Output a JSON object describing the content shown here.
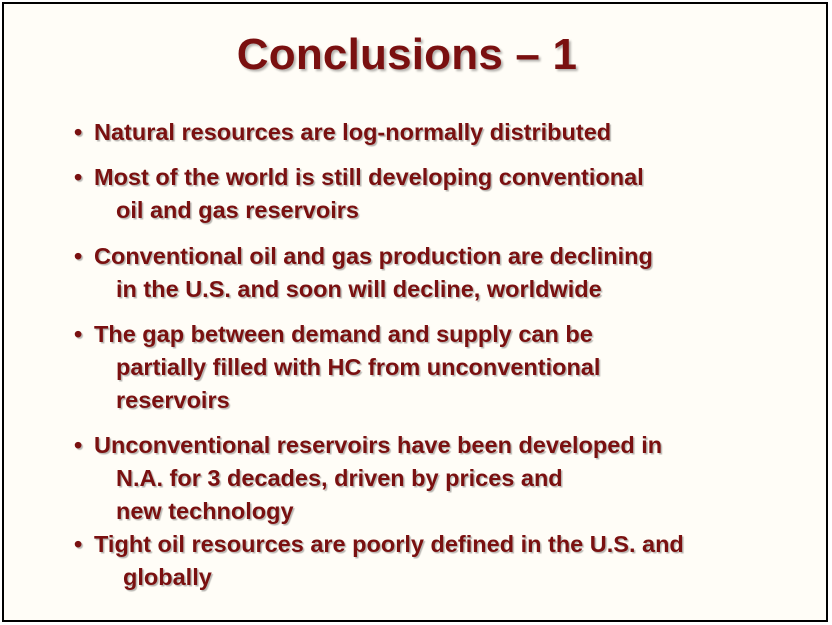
{
  "slide": {
    "title": "Conclusions – 1",
    "bullet_char": "•",
    "bullets": [
      {
        "lines": [
          "Natural resources are log-normally distributed"
        ]
      },
      {
        "lines": [
          "Most of the world is still developing conventional",
          "oil and gas reservoirs"
        ]
      },
      {
        "lines": [
          "Conventional oil and gas production are declining",
          "in the U.S. and soon will decline, worldwide"
        ]
      },
      {
        "lines": [
          "The gap between demand and supply can be",
          "partially filled with HC from unconventional",
          "reservoirs"
        ]
      },
      {
        "lines": [
          "Unconventional reservoirs have been developed in",
          "N.A. for 3 decades, driven by prices and",
          "new technology"
        ]
      },
      {
        "lines": [
          "Tight oil resources are poorly defined in the U.S. and",
          "globally"
        ]
      }
    ],
    "colors": {
      "text": "#7a1010",
      "background": "#fffdf7",
      "border": "#000000"
    }
  }
}
